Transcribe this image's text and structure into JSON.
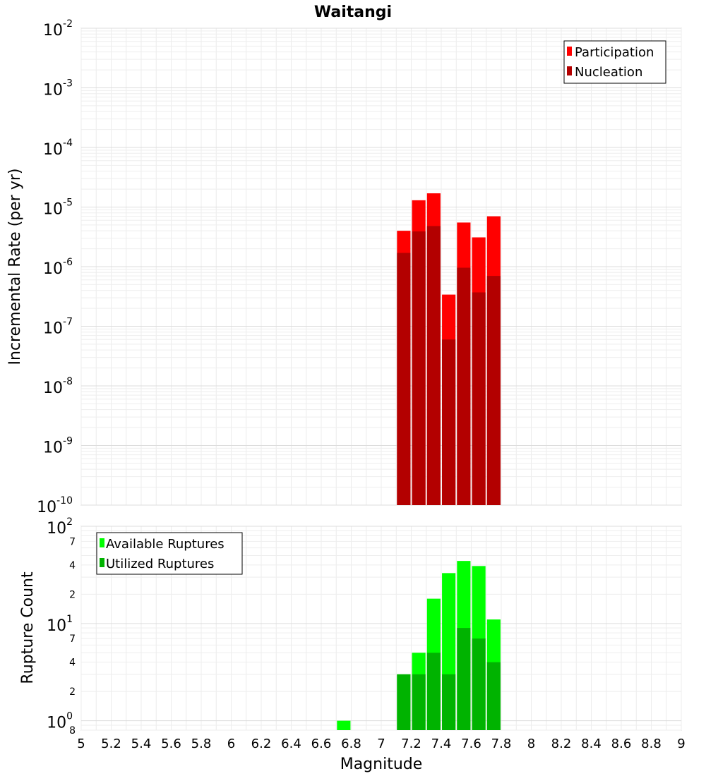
{
  "chart_data": [
    {
      "type": "bar",
      "title": "Waitangi",
      "ylabel": "Incremental Rate (per yr)",
      "xlabel": "Magnitude",
      "xlim": [
        5,
        9
      ],
      "ylim": [
        1e-10,
        0.01
      ],
      "yscale": "log",
      "y_ticks": [
        {
          "base": "10",
          "exp": "-2"
        },
        {
          "base": "10",
          "exp": "-3"
        },
        {
          "base": "10",
          "exp": "-4"
        },
        {
          "base": "10",
          "exp": "-5"
        },
        {
          "base": "10",
          "exp": "-6"
        },
        {
          "base": "10",
          "exp": "-7"
        },
        {
          "base": "10",
          "exp": "-8"
        },
        {
          "base": "10",
          "exp": "-9"
        },
        {
          "base": "10",
          "exp": "-10"
        }
      ],
      "legend_position": "top-right",
      "grid": true,
      "series": [
        {
          "name": "Participation",
          "color": "#ff0000",
          "x": [
            7.15,
            7.25,
            7.35,
            7.45,
            7.55,
            7.65,
            7.75
          ],
          "values": [
            4e-06,
            1.3e-05,
            1.7e-05,
            3.4e-07,
            5.5e-06,
            3.1e-06,
            7e-06
          ]
        },
        {
          "name": "Nucleation",
          "color": "#b30000",
          "x": [
            7.15,
            7.25,
            7.35,
            7.45,
            7.55,
            7.65,
            7.75
          ],
          "values": [
            1.7e-06,
            3.9e-06,
            4.8e-06,
            6e-08,
            9.6e-07,
            3.7e-07,
            7e-07
          ]
        }
      ]
    },
    {
      "type": "bar",
      "ylabel": "Rupture Count",
      "xlabel": "Magnitude",
      "xlim": [
        5,
        9
      ],
      "ylim": [
        0.8,
        100
      ],
      "yscale": "log",
      "y_ticks": [
        {
          "base": "10",
          "exp": "2"
        },
        {
          "base": "10",
          "exp": "1"
        },
        {
          "base": "10",
          "exp": "0"
        }
      ],
      "y_minor_ticks": [
        {
          "label": "7",
          "value": 70
        },
        {
          "label": "4",
          "value": 40
        },
        {
          "label": "2",
          "value": 20
        },
        {
          "label": "7",
          "value": 7
        },
        {
          "label": "4",
          "value": 4
        },
        {
          "label": "2",
          "value": 2
        },
        {
          "label": "8",
          "value": 0.8
        }
      ],
      "legend_position": "top-left",
      "grid": true,
      "series": [
        {
          "name": "Available Ruptures",
          "color": "#00ff00",
          "x": [
            6.75,
            7.15,
            7.25,
            7.35,
            7.45,
            7.55,
            7.65,
            7.75
          ],
          "values": [
            1,
            3,
            5,
            18,
            33,
            44,
            39,
            11
          ]
        },
        {
          "name": "Utilized Ruptures",
          "color": "#00b300",
          "x": [
            6.75,
            7.15,
            7.25,
            7.35,
            7.45,
            7.55,
            7.65,
            7.75
          ],
          "values": [
            0,
            3,
            3,
            5,
            3,
            9,
            7,
            4
          ]
        }
      ]
    }
  ],
  "x_ticks": [
    "5",
    "5.2",
    "5.4",
    "5.6",
    "5.8",
    "6",
    "6.2",
    "6.4",
    "6.6",
    "6.8",
    "7",
    "7.2",
    "7.4",
    "7.6",
    "7.8",
    "8",
    "8.2",
    "8.4",
    "8.6",
    "8.8",
    "9"
  ]
}
